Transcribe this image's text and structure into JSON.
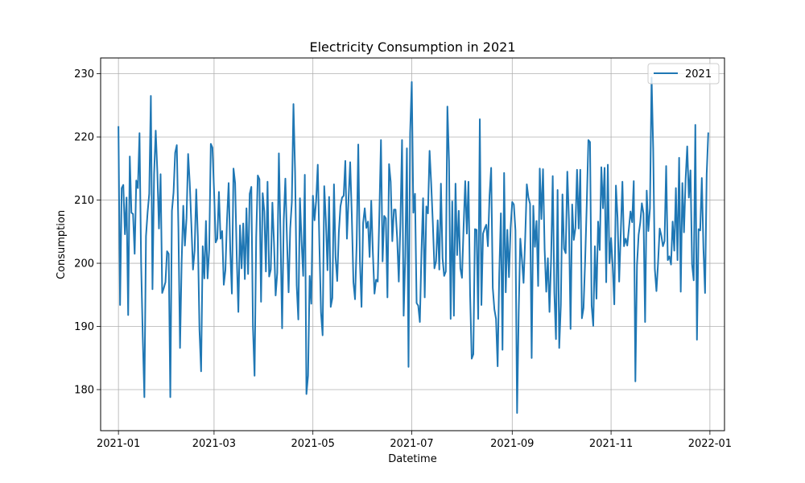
{
  "chart_data": {
    "type": "line",
    "title": "Electricity Consumption in 2021",
    "xlabel": "Datetime",
    "ylabel": "Consumption",
    "x_range": [
      "2020-12-21",
      "2022-01-10"
    ],
    "ylim": [
      173.5,
      232.5
    ],
    "grid": true,
    "legend_position": "top-right",
    "x_ticks": [
      "2021-01-01",
      "2021-03-01",
      "2021-05-01",
      "2021-07-01",
      "2021-09-01",
      "2021-11-01",
      "2022-01-01"
    ],
    "x_tick_labels": [
      "2021-01",
      "2021-03",
      "2021-05",
      "2021-07",
      "2021-09",
      "2021-11",
      "2022-01"
    ],
    "y_ticks": [
      180,
      190,
      200,
      210,
      220,
      230
    ],
    "series": [
      {
        "name": "2021",
        "color": "#1f77b4",
        "start_date": "2021-01-01",
        "frequency": "daily",
        "values": [
          221.7,
          193.4,
          211.9,
          212.4,
          204.6,
          210.4,
          191.8,
          216.9,
          208,
          207.8,
          201.5,
          213.1,
          211.9,
          220.6,
          200,
          188.3,
          178.8,
          204.3,
          208.1,
          211,
          226.5,
          195.9,
          214.1,
          221,
          214.5,
          205.5,
          214.1,
          195.3,
          196.1,
          197,
          201.9,
          201.5,
          178.8,
          208.3,
          211.2,
          217.5,
          218.7,
          205.6,
          186.6,
          200.2,
          209.1,
          202.8,
          207.1,
          217.3,
          212.7,
          206.1,
          199,
          202,
          211.7,
          204.2,
          189.5,
          182.9,
          202.7,
          197.6,
          206.7,
          197.6,
          202.2,
          218.9,
          218.3,
          211.5,
          203.3,
          203.9,
          211.3,
          203.9,
          205.1,
          196.6,
          198.9,
          206.9,
          212.7,
          202.1,
          195.2,
          215,
          212.7,
          201.1,
          192.3,
          206,
          199.2,
          206.3,
          197.5,
          208.7,
          198.3,
          211,
          212.1,
          189.9,
          182.2,
          204.1,
          213.9,
          213.3,
          193.9,
          211.1,
          208.2,
          198.7,
          212.9,
          197.9,
          199,
          209.6,
          203.2,
          194.9,
          198.5,
          217.4,
          204.6,
          189.7,
          206.8,
          213.4,
          203.8,
          195.4,
          205.5,
          209.7,
          225.2,
          214.5,
          196.5,
          191.1,
          210.3,
          203.5,
          198,
          214,
          179.3,
          182.2,
          198,
          193.6,
          210.7,
          206.8,
          209.9,
          215.6,
          203,
          192.2,
          188.6,
          212.2,
          206.8,
          198.9,
          210.5,
          193.1,
          194.5,
          212.5,
          200.9,
          197.2,
          204.9,
          209,
          210.4,
          210.7,
          216.2,
          203.9,
          210.2,
          216,
          207.6,
          197,
          194.3,
          203.1,
          218.8,
          200.5,
          193.1,
          206.4,
          208.7,
          205.6,
          206.6,
          201,
          209.9,
          201.7,
          195.2,
          197.4,
          197.1,
          207.7,
          219.5,
          200.3,
          207.5,
          207.1,
          194.6,
          215.7,
          212.9,
          203.5,
          208.5,
          208.5,
          204,
          197.1,
          206.4,
          219.5,
          191.7,
          201.1,
          218.2,
          183.6,
          220.6,
          228.7,
          208,
          211,
          193.7,
          193.3,
          190.7,
          201.7,
          210.3,
          194.6,
          209,
          207.9,
          217.8,
          212.6,
          206.4,
          199.2,
          200.3,
          206.8,
          199,
          212.6,
          200.8,
          198,
          198.7,
          224.8,
          216.1,
          191.2,
          209.8,
          191.7,
          212.6,
          201.3,
          208.3,
          199.2,
          197.7,
          205.8,
          213,
          204.7,
          212.9,
          195.2,
          184.9,
          185.6,
          205.4,
          205.3,
          191.2,
          222.8,
          193.4,
          204.7,
          205.5,
          206.1,
          202.7,
          210.7,
          215.1,
          196.1,
          192.7,
          191.2,
          183.7,
          198.3,
          207.9,
          186.3,
          214.3,
          195.4,
          205.3,
          197.8,
          205.6,
          209.7,
          209.3,
          205.2,
          176.3,
          192.3,
          203.9,
          200.6,
          196.9,
          203.9,
          212.5,
          210.4,
          209.4,
          185,
          209.1,
          202.6,
          206.7,
          196.4,
          215,
          207,
          214.9,
          202.2,
          195.5,
          200.8,
          192.3,
          200.7,
          213.8,
          195.3,
          188,
          211.6,
          186.6,
          193.4,
          210.9,
          202.3,
          201.6,
          214.5,
          206.9,
          189.6,
          209.3,
          203.7,
          205.6,
          214.8,
          205.5,
          214.8,
          191.3,
          192.9,
          200.4,
          209.4,
          219.5,
          219.2,
          193.3,
          190.1,
          202.7,
          194.4,
          206.6,
          202.1,
          215.2,
          208.7,
          215.1,
          197,
          215.6,
          200,
          204,
          199.5,
          193.5,
          212.3,
          207.2,
          197.1,
          205,
          212.9,
          202.7,
          203.9,
          202.8,
          205.5,
          208.2,
          206.5,
          213,
          181.3,
          199.7,
          204.5,
          206.4,
          209.5,
          207.9,
          190.7,
          211.5,
          205.1,
          208.7,
          229.4,
          218.1,
          199.1,
          195.6,
          200.1,
          205.5,
          204.4,
          202.7,
          203.5,
          215.4,
          200.5,
          201.1,
          199.8,
          206.6,
          202,
          211.9,
          200.5,
          216.7,
          195.5,
          212.7,
          204.9,
          213.3,
          218.5,
          210.4,
          214.7,
          199.8,
          197.3,
          221.9,
          187.9,
          205.4,
          205.2,
          213.5,
          202.3,
          195.3,
          214.1,
          220.7
        ]
      }
    ]
  }
}
